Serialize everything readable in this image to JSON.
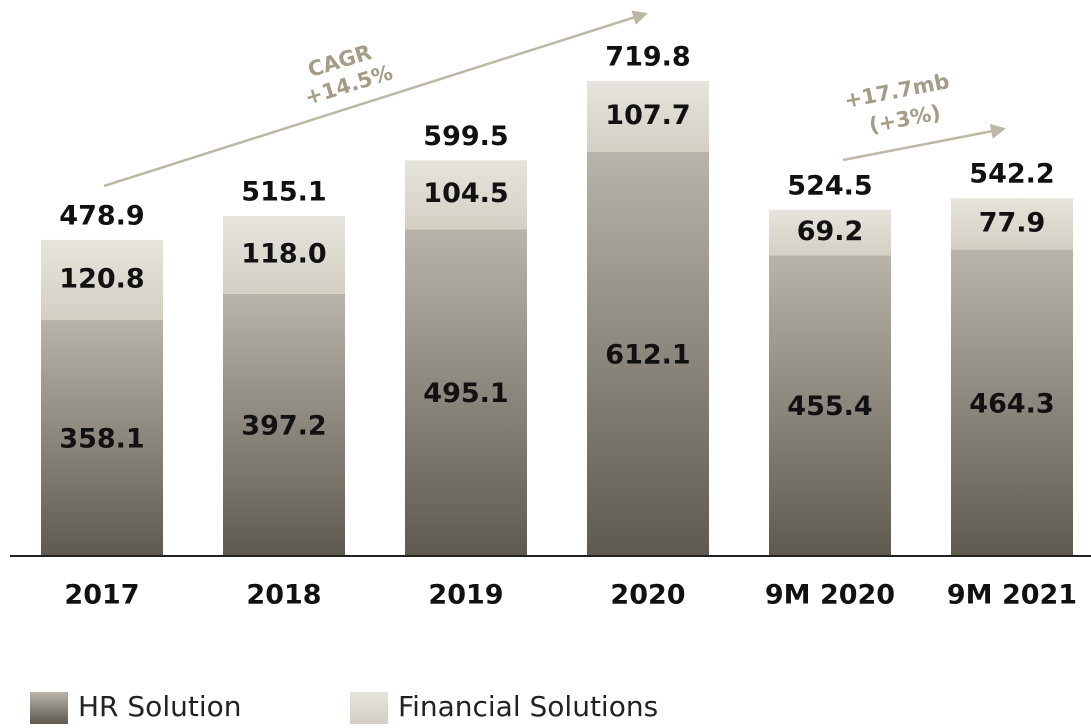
{
  "chart_data": {
    "type": "stacked_bar",
    "categories": [
      "2017",
      "2018",
      "2019",
      "2020",
      "9M 2020",
      "9M 2021"
    ],
    "series": [
      {
        "name": "HR Solution",
        "color": "#8a8270",
        "values": [
          358.1,
          397.2,
          495.1,
          612.1,
          455.4,
          464.3
        ]
      },
      {
        "name": "Financial Solutions",
        "color": "#d6d2c5",
        "values": [
          120.8,
          118.0,
          104.5,
          107.7,
          69.2,
          77.9
        ],
        "value_labels": [
          "120.8",
          "118.0",
          "104.5",
          "107.7",
          "69.2",
          "77.9"
        ]
      }
    ],
    "totals": [
      478.9,
      515.1,
      599.5,
      719.8,
      524.5,
      542.2
    ],
    "annotations": [
      "CAGR",
      "+14.5%",
      "+17.7mb",
      "(+3%)"
    ],
    "ylim": [
      0,
      800
    ],
    "legend": "bottom-left"
  }
}
